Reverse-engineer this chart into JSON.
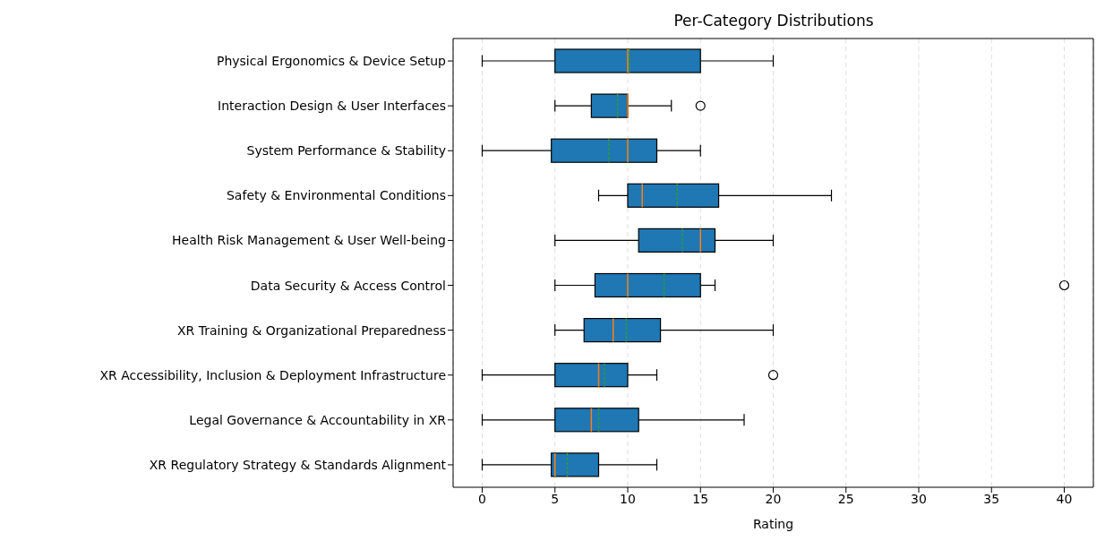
{
  "chart_data": {
    "type": "box",
    "orientation": "horizontal",
    "title": "Per-Category Distributions",
    "xlabel": "Rating",
    "color": "#1f77b4",
    "categories": [
      "Physical Ergonomics & Device Setup",
      "Interaction Design & User Interfaces",
      "System Performance & Stability",
      "Safety & Environmental Conditions",
      "Health Risk Management & User Well-being",
      "Data Security & Access Control",
      "XR Training & Organizational Preparedness",
      "XR Accessibility, Inclusion & Deployment Infrastructure",
      "Legal Governance & Accountability in XR",
      "XR Regulatory Strategy & Standards Alignment"
    ],
    "boxes": [
      {
        "low": 0,
        "q1": 5,
        "median": 10,
        "q3": 15,
        "high": 20,
        "mean": 10.1
      },
      {
        "low": 5,
        "q1": 7.5,
        "median": 10,
        "q3": 10,
        "high": 13,
        "mean": 9.3,
        "outliers": [
          15
        ]
      },
      {
        "low": 0,
        "q1": 4.75,
        "median": 10,
        "q3": 12,
        "high": 15,
        "mean": 8.7
      },
      {
        "low": 8,
        "q1": 10,
        "median": 11,
        "q3": 16.25,
        "high": 24,
        "mean": 13.4
      },
      {
        "low": 5,
        "q1": 10.75,
        "median": 15,
        "q3": 16,
        "high": 20,
        "mean": 13.75
      },
      {
        "low": 5,
        "q1": 7.75,
        "median": 10,
        "q3": 15,
        "high": 16,
        "mean": 12.5,
        "outliers": [
          40
        ]
      },
      {
        "low": 5,
        "q1": 7,
        "median": 9,
        "q3": 12.25,
        "high": 20,
        "mean": 9.9
      },
      {
        "low": 0,
        "q1": 5,
        "median": 8,
        "q3": 10,
        "high": 12,
        "mean": 8.4,
        "outliers": [
          20
        ]
      },
      {
        "low": 0,
        "q1": 5,
        "median": 7.5,
        "q3": 10.75,
        "high": 18,
        "mean": 8
      },
      {
        "low": 0,
        "q1": 4.75,
        "median": 5,
        "q3": 8,
        "high": 12,
        "mean": 5.85
      }
    ],
    "xlim": [
      -2,
      42
    ],
    "xticks": [
      0,
      5,
      10,
      15,
      20,
      25,
      30,
      35,
      40
    ],
    "grid": "x"
  }
}
